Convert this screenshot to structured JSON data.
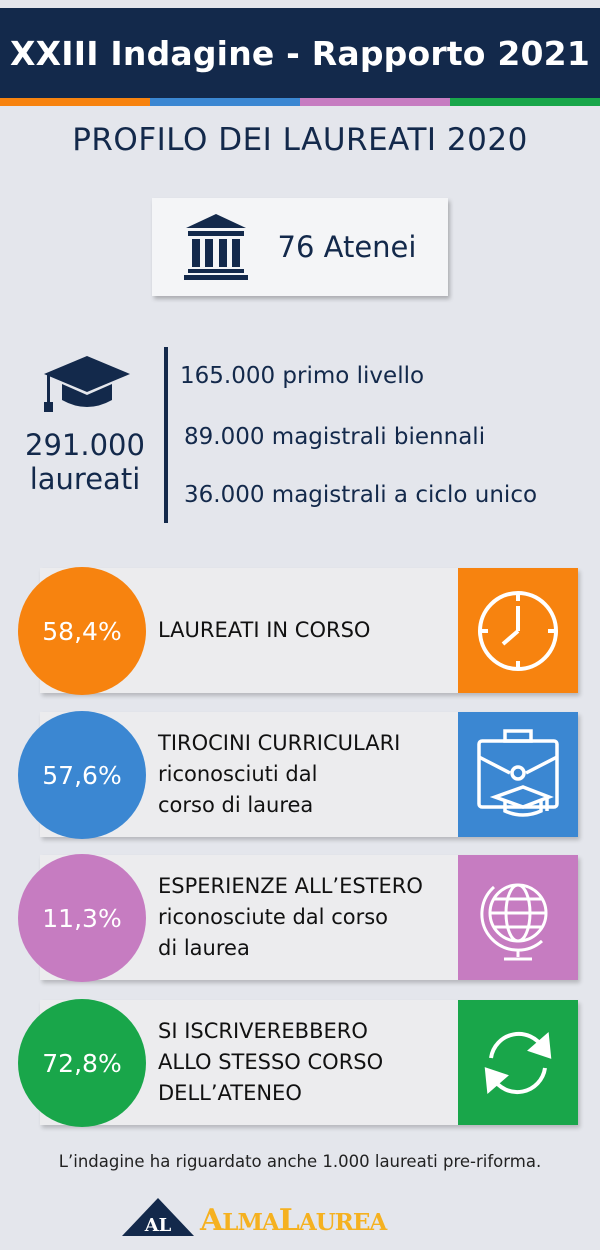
{
  "header": {
    "title": "XXIII Indagine - Rapporto 2021"
  },
  "subtitle": "PROFILO DEI LAUREATI 2020",
  "atenei": {
    "icon": "university-building-icon",
    "label": "76 Atenei"
  },
  "laureati": {
    "icon": "graduation-cap-icon",
    "number": "291.000",
    "label": "laureati",
    "breakdown": [
      "165.000 primo livello",
      "89.000 magistrali biennali",
      "36.000 magistrali a ciclo unico"
    ]
  },
  "colors": {
    "navy": "#13294b",
    "orange": "#f7830f",
    "blue": "#3b87d2",
    "purple": "#c67cc1",
    "green": "#19a64a"
  },
  "stats": [
    {
      "value": "58,4%",
      "lines": [
        "LAUREATI IN CORSO"
      ],
      "icon": "clock-icon",
      "color": "#f7830f"
    },
    {
      "value": "57,6%",
      "lines": [
        "TIROCINI CURRICULARI",
        "riconosciuti dal",
        "corso di laurea"
      ],
      "icon": "briefcase-graduation-icon",
      "color": "#3b87d2"
    },
    {
      "value": "11,3%",
      "lines": [
        "ESPERIENZE ALL’ESTERO",
        "riconosciute dal corso",
        "di laurea"
      ],
      "icon": "globe-icon",
      "color": "#c67cc1"
    },
    {
      "value": "72,8%",
      "lines": [
        "SI ISCRIVEREBBERO",
        "ALLO STESSO CORSO",
        "DELL’ATENEO"
      ],
      "icon": "refresh-arrows-icon",
      "color": "#19a64a"
    }
  ],
  "footnote": "L’indagine ha riguardato anche 1.000 laureati pre-riforma.",
  "logo": {
    "badge": "AL",
    "word": "ALMALAUREA"
  }
}
